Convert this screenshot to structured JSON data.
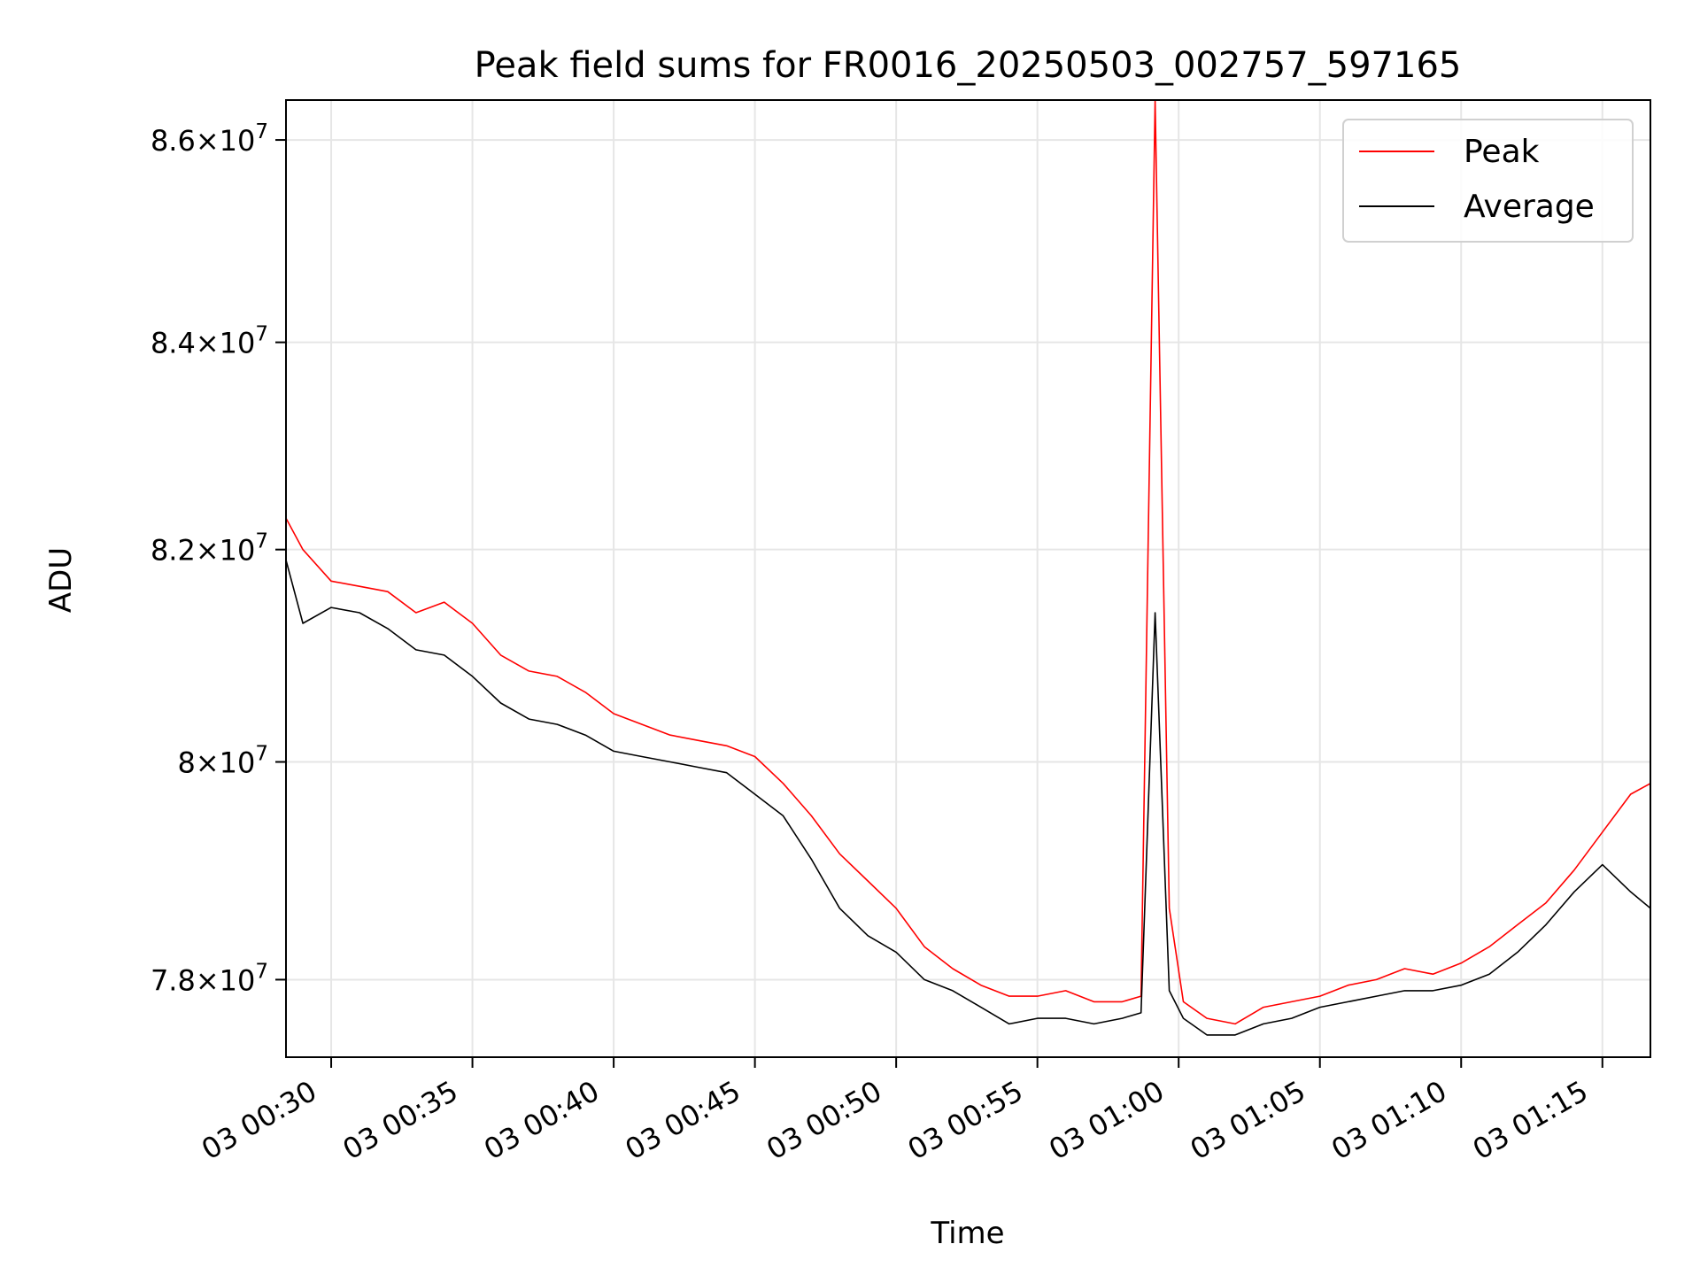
{
  "chart_data": {
    "type": "line",
    "title": "Peak field sums for FR0016_20250503_002757_597165",
    "xlabel": "Time",
    "ylabel": "ADU",
    "x_unit": "time (HH:MM, 2025-05-03)",
    "xlim": [
      "00:28:24",
      "01:16:42"
    ],
    "ylim": [
      77300000,
      86400000
    ],
    "y_scale": "log",
    "grid": true,
    "legend_position": "top-right",
    "x_ticks": [
      {
        "value": "00:30",
        "label": "03 00:30"
      },
      {
        "value": "00:35",
        "label": "03 00:35"
      },
      {
        "value": "00:40",
        "label": "03 00:40"
      },
      {
        "value": "00:45",
        "label": "03 00:45"
      },
      {
        "value": "00:50",
        "label": "03 00:50"
      },
      {
        "value": "00:55",
        "label": "03 00:55"
      },
      {
        "value": "01:00",
        "label": "03 01:00"
      },
      {
        "value": "01:05",
        "label": "03 01:05"
      },
      {
        "value": "01:10",
        "label": "03 01:10"
      },
      {
        "value": "01:15",
        "label": "03 01:15"
      }
    ],
    "y_ticks": [
      {
        "value": 78000000,
        "mantissa": "7.8",
        "exp": "7"
      },
      {
        "value": 80000000,
        "mantissa": "8",
        "exp": "7"
      },
      {
        "value": 82000000,
        "mantissa": "8.2",
        "exp": "7"
      },
      {
        "value": 84000000,
        "mantissa": "8.4",
        "exp": "7"
      },
      {
        "value": 86000000,
        "mantissa": "8.6",
        "exp": "7"
      }
    ],
    "x": [
      "00:28:24",
      "00:29:00",
      "00:30:00",
      "00:31:00",
      "00:32:00",
      "00:33:00",
      "00:34:00",
      "00:35:00",
      "00:36:00",
      "00:37:00",
      "00:38:00",
      "00:39:00",
      "00:40:00",
      "00:41:00",
      "00:42:00",
      "00:43:00",
      "00:44:00",
      "00:45:00",
      "00:46:00",
      "00:47:00",
      "00:48:00",
      "00:49:00",
      "00:50:00",
      "00:51:00",
      "00:52:00",
      "00:53:00",
      "00:54:00",
      "00:55:00",
      "00:56:00",
      "00:57:00",
      "00:58:00",
      "00:58:40",
      "00:59:10",
      "00:59:40",
      "01:00:10",
      "01:01:00",
      "01:02:00",
      "01:03:00",
      "01:04:00",
      "01:05:00",
      "01:06:00",
      "01:07:00",
      "01:08:00",
      "01:09:00",
      "01:10:00",
      "01:11:00",
      "01:12:00",
      "01:13:00",
      "01:14:00",
      "01:15:00",
      "01:16:00",
      "01:16:42"
    ],
    "series": [
      {
        "name": "Peak",
        "color": "#ff0000",
        "values": [
          82300000,
          82000000,
          81700000,
          81650000,
          81600000,
          81400000,
          81500000,
          81300000,
          81000000,
          80850000,
          80800000,
          80650000,
          80450000,
          80350000,
          80250000,
          80200000,
          80150000,
          80050000,
          79800000,
          79500000,
          79150000,
          78900000,
          78650000,
          78300000,
          78100000,
          77950000,
          77850000,
          77850000,
          77900000,
          77800000,
          77800000,
          77850000,
          86400000,
          78650000,
          77800000,
          77650000,
          77600000,
          77750000,
          77800000,
          77850000,
          77950000,
          78000000,
          78100000,
          78050000,
          78150000,
          78300000,
          78500000,
          78700000,
          79000000,
          79350000,
          79700000,
          79800000
        ]
      },
      {
        "name": "Average",
        "color": "#000000",
        "values": [
          81900000,
          81300000,
          81450000,
          81400000,
          81250000,
          81050000,
          81000000,
          80800000,
          80550000,
          80400000,
          80350000,
          80250000,
          80100000,
          80050000,
          80000000,
          79950000,
          79900000,
          79700000,
          79500000,
          79100000,
          78650000,
          78400000,
          78250000,
          78000000,
          77900000,
          77750000,
          77600000,
          77650000,
          77650000,
          77600000,
          77650000,
          77700000,
          81400000,
          77900000,
          77650000,
          77500000,
          77500000,
          77600000,
          77650000,
          77750000,
          77800000,
          77850000,
          77900000,
          77900000,
          77950000,
          78050000,
          78250000,
          78500000,
          78800000,
          79050000,
          78800000,
          78650000
        ]
      }
    ]
  }
}
